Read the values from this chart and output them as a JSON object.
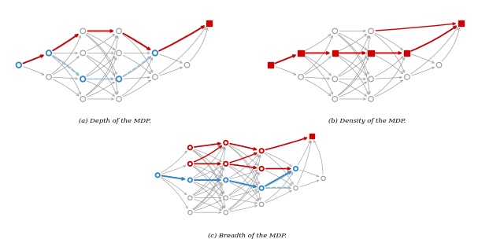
{
  "figsize": [
    6.4,
    3.18
  ],
  "dpi": 100,
  "caption_a": "(a) Depth of the MDP.",
  "caption_b": "(b) Density of the MDP.",
  "caption_c": "(c) Breadth of the MDP.",
  "gray": "#999999",
  "dark_gray": "#555555",
  "red": "#cc0000",
  "blue": "#3388cc",
  "light_blue": "#88bbdd",
  "node_r": 0.13
}
